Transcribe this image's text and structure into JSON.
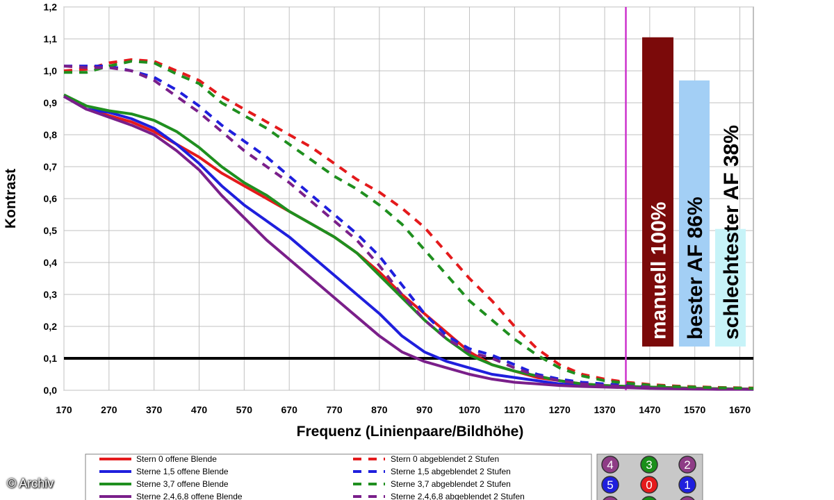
{
  "credit": "© Archiv",
  "chart_data": {
    "type": "line",
    "xlabel": "Frequenz (Linienpaare/Bildhöhe)",
    "ylabel": "Kontrast",
    "xlim": [
      170,
      1700
    ],
    "ylim": [
      0,
      1.2
    ],
    "x_ticks": [
      170,
      270,
      370,
      470,
      570,
      670,
      770,
      870,
      970,
      1070,
      1170,
      1270,
      1370,
      1470,
      1570,
      1670
    ],
    "x_tick_labels": [
      "170",
      "270",
      "370",
      "470",
      "570",
      "670",
      "770",
      "870",
      "970",
      "1070",
      "1170",
      "1270",
      "1370",
      "1470",
      "1570",
      "1670"
    ],
    "y_ticks": [
      0,
      0.1,
      0.2,
      0.3,
      0.4,
      0.5,
      0.6,
      0.7,
      0.8,
      0.9,
      1.0,
      1.1,
      1.2
    ],
    "y_tick_labels": [
      "0,0",
      "0,1",
      "0,2",
      "0,3",
      "0,4",
      "0,5",
      "0,6",
      "0,7",
      "0,8",
      "0,9",
      "1,0",
      "1,1",
      "1,2"
    ],
    "grid": true,
    "threshold_line": {
      "y": 0.1,
      "color": "#000000"
    },
    "marker_line": {
      "x": 1417,
      "color": "#cc33cc"
    },
    "series": [
      {
        "name": "Stern 0 offene Blende",
        "color": "#e41a1c",
        "dash": false,
        "x": [
          170,
          220,
          270,
          320,
          370,
          420,
          470,
          520,
          570,
          620,
          670,
          720,
          770,
          820,
          870,
          920,
          970,
          1020,
          1070,
          1120,
          1170,
          1220,
          1270,
          1320,
          1370,
          1420,
          1470,
          1520,
          1570,
          1620,
          1700
        ],
        "y": [
          0.92,
          0.88,
          0.86,
          0.84,
          0.81,
          0.77,
          0.73,
          0.68,
          0.64,
          0.6,
          0.56,
          0.52,
          0.48,
          0.43,
          0.37,
          0.3,
          0.24,
          0.18,
          0.12,
          0.08,
          0.06,
          0.04,
          0.03,
          0.02,
          0.015,
          0.012,
          0.01,
          0.008,
          0.006,
          0.005,
          0.004
        ]
      },
      {
        "name": "Sterne 1,5 offene Blende",
        "color": "#1f1fdd",
        "dash": false,
        "x": [
          170,
          220,
          270,
          320,
          370,
          420,
          470,
          520,
          570,
          620,
          670,
          720,
          770,
          820,
          870,
          920,
          970,
          1020,
          1070,
          1120,
          1170,
          1220,
          1270,
          1320,
          1370,
          1420,
          1470,
          1520,
          1570,
          1620,
          1700
        ],
        "y": [
          0.92,
          0.88,
          0.87,
          0.85,
          0.82,
          0.77,
          0.71,
          0.64,
          0.58,
          0.53,
          0.48,
          0.42,
          0.36,
          0.3,
          0.24,
          0.17,
          0.12,
          0.09,
          0.07,
          0.05,
          0.04,
          0.03,
          0.02,
          0.015,
          0.012,
          0.01,
          0.008,
          0.006,
          0.005,
          0.004,
          0.003
        ]
      },
      {
        "name": "Sterne 3,7 offene Blende",
        "color": "#1f8f1f",
        "dash": false,
        "x": [
          170,
          220,
          270,
          320,
          370,
          420,
          470,
          520,
          570,
          620,
          670,
          720,
          770,
          820,
          870,
          920,
          970,
          1020,
          1070,
          1120,
          1170,
          1220,
          1270,
          1320,
          1370,
          1420,
          1470,
          1520,
          1570,
          1620,
          1700
        ],
        "y": [
          0.925,
          0.89,
          0.875,
          0.865,
          0.845,
          0.81,
          0.76,
          0.7,
          0.65,
          0.61,
          0.56,
          0.52,
          0.48,
          0.43,
          0.36,
          0.29,
          0.22,
          0.16,
          0.11,
          0.08,
          0.06,
          0.045,
          0.03,
          0.02,
          0.015,
          0.012,
          0.01,
          0.008,
          0.006,
          0.005,
          0.004
        ]
      },
      {
        "name": "Sterne 2,4,6,8 offene Blende",
        "color": "#7a1f8a",
        "dash": false,
        "x": [
          170,
          220,
          270,
          320,
          370,
          420,
          470,
          520,
          570,
          620,
          670,
          720,
          770,
          820,
          870,
          920,
          970,
          1020,
          1070,
          1120,
          1170,
          1220,
          1270,
          1320,
          1370,
          1420,
          1470,
          1520,
          1570,
          1620,
          1700
        ],
        "y": [
          0.92,
          0.88,
          0.855,
          0.83,
          0.8,
          0.75,
          0.69,
          0.61,
          0.54,
          0.47,
          0.41,
          0.35,
          0.29,
          0.23,
          0.17,
          0.12,
          0.09,
          0.07,
          0.05,
          0.035,
          0.025,
          0.02,
          0.015,
          0.012,
          0.01,
          0.008,
          0.006,
          0.005,
          0.004,
          0.003,
          0.003
        ]
      },
      {
        "name": "Stern 0 abgeblendet 2 Stufen",
        "color": "#e41a1c",
        "dash": true,
        "x": [
          170,
          220,
          270,
          320,
          370,
          420,
          470,
          520,
          570,
          620,
          670,
          720,
          770,
          820,
          870,
          920,
          970,
          1020,
          1070,
          1120,
          1170,
          1220,
          1270,
          1320,
          1370,
          1420,
          1470,
          1520,
          1570,
          1620,
          1700
        ],
        "y": [
          1.0,
          1.005,
          1.025,
          1.035,
          1.03,
          1.0,
          0.97,
          0.92,
          0.88,
          0.84,
          0.8,
          0.76,
          0.71,
          0.66,
          0.62,
          0.57,
          0.51,
          0.43,
          0.35,
          0.28,
          0.2,
          0.13,
          0.08,
          0.05,
          0.035,
          0.025,
          0.018,
          0.014,
          0.011,
          0.009,
          0.007
        ]
      },
      {
        "name": "Sterne 1,5 abgeblendet 2 Stufen",
        "color": "#1f1fdd",
        "dash": true,
        "x": [
          170,
          220,
          270,
          320,
          370,
          420,
          470,
          520,
          570,
          620,
          670,
          720,
          770,
          820,
          870,
          920,
          970,
          1020,
          1070,
          1120,
          1170,
          1220,
          1270,
          1320,
          1370,
          1420,
          1470
        ],
        "y": [
          1.015,
          1.015,
          1.015,
          1.0,
          0.98,
          0.94,
          0.89,
          0.83,
          0.78,
          0.73,
          0.67,
          0.61,
          0.55,
          0.49,
          0.42,
          0.33,
          0.24,
          0.17,
          0.13,
          0.11,
          0.08,
          0.05,
          0.035,
          0.025,
          0.02,
          0.015,
          0.012
        ]
      },
      {
        "name": "Sterne 3,7 abgeblendet 2 Stufen",
        "color": "#1f8f1f",
        "dash": true,
        "x": [
          170,
          220,
          270,
          320,
          370,
          420,
          470,
          520,
          570,
          620,
          670,
          720,
          770,
          820,
          870,
          920,
          970,
          1020,
          1070,
          1120,
          1170,
          1220,
          1270,
          1320,
          1370,
          1420,
          1470,
          1520,
          1570,
          1620,
          1700
        ],
        "y": [
          0.995,
          0.995,
          1.015,
          1.03,
          1.025,
          0.99,
          0.96,
          0.9,
          0.86,
          0.82,
          0.77,
          0.72,
          0.67,
          0.63,
          0.58,
          0.52,
          0.44,
          0.36,
          0.28,
          0.22,
          0.16,
          0.11,
          0.07,
          0.045,
          0.03,
          0.022,
          0.016,
          0.012,
          0.01,
          0.008,
          0.006
        ]
      },
      {
        "name": "Sterne 2,4,6,8 abgeblendet 2 Stufen",
        "color": "#7a1f8a",
        "dash": true,
        "x": [
          170,
          220,
          270,
          320,
          370,
          420,
          470,
          520,
          570,
          620,
          670,
          720,
          770,
          820,
          870,
          920,
          970,
          1020,
          1070,
          1120,
          1170,
          1220,
          1270,
          1320,
          1370,
          1420,
          1470
        ],
        "y": [
          1.015,
          1.01,
          1.01,
          1.0,
          0.97,
          0.92,
          0.87,
          0.81,
          0.75,
          0.7,
          0.65,
          0.59,
          0.53,
          0.47,
          0.39,
          0.3,
          0.22,
          0.16,
          0.12,
          0.1,
          0.07,
          0.045,
          0.03,
          0.02,
          0.015,
          0.012,
          0.01
        ]
      }
    ],
    "bars": [
      {
        "label": "manuell 100%",
        "value": 1.105,
        "color": "#7b0a0a",
        "text_color": "#ffffff"
      },
      {
        "label": "bester AF 86%",
        "value": 0.97,
        "color": "#a3cff5",
        "text_color": "#000000"
      },
      {
        "label": "schlechtester AF 38%",
        "value": 0.505,
        "color": "#c7f3f8",
        "text_color": "#000000"
      }
    ],
    "badges": {
      "rows": [
        [
          {
            "label": "4",
            "color": "#8e3c86"
          },
          {
            "label": "3",
            "color": "#1a8f1a"
          },
          {
            "label": "2",
            "color": "#8e3c86"
          }
        ],
        [
          {
            "label": "5",
            "color": "#1f1fdd"
          },
          {
            "label": "0",
            "color": "#e41a1c"
          },
          {
            "label": "1",
            "color": "#1f1fdd"
          }
        ],
        [
          {
            "label": "",
            "color": "#8e3c86"
          },
          {
            "label": "",
            "color": "#1a8f1a"
          },
          {
            "label": "",
            "color": "#8e3c86"
          }
        ]
      ]
    }
  }
}
